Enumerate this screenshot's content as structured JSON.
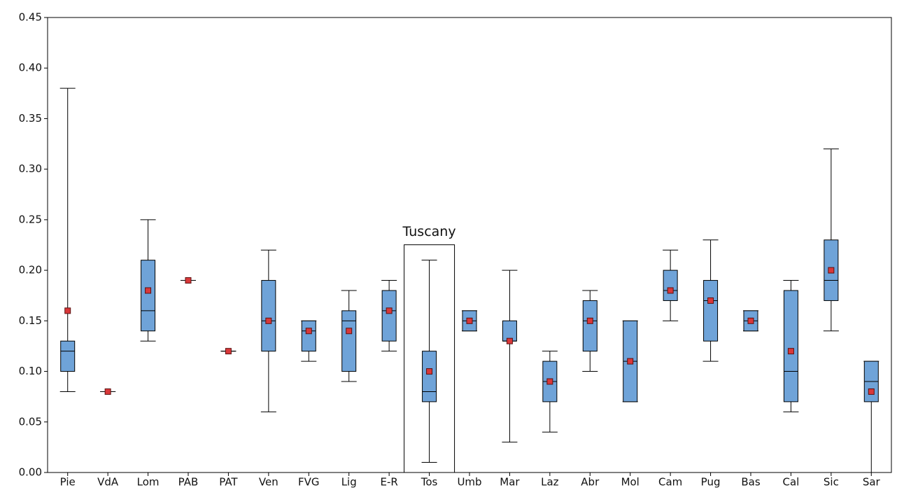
{
  "chart_data": {
    "type": "box",
    "categories": [
      "Pie",
      "VdA",
      "Lom",
      "PAB",
      "PAT",
      "Ven",
      "FVG",
      "Lig",
      "E-R",
      "Tos",
      "Umb",
      "Mar",
      "Laz",
      "Abr",
      "Mol",
      "Cam",
      "Pug",
      "Bas",
      "Cal",
      "Sic",
      "Sar"
    ],
    "min": [
      0.08,
      0.08,
      0.13,
      0.19,
      0.12,
      0.06,
      0.11,
      0.09,
      0.12,
      0.01,
      0.14,
      0.03,
      0.04,
      0.1,
      0.07,
      0.15,
      0.11,
      0.14,
      0.06,
      0.14,
      0.0
    ],
    "q1": [
      0.1,
      0.08,
      0.14,
      0.19,
      0.12,
      0.12,
      0.12,
      0.1,
      0.13,
      0.07,
      0.14,
      0.13,
      0.07,
      0.12,
      0.07,
      0.17,
      0.13,
      0.14,
      0.07,
      0.17,
      0.07
    ],
    "median": [
      0.12,
      0.08,
      0.16,
      0.19,
      0.12,
      0.15,
      0.14,
      0.15,
      0.16,
      0.08,
      0.15,
      0.13,
      0.09,
      0.15,
      0.11,
      0.18,
      0.17,
      0.15,
      0.1,
      0.19,
      0.09
    ],
    "q3": [
      0.13,
      0.08,
      0.21,
      0.19,
      0.12,
      0.19,
      0.15,
      0.16,
      0.18,
      0.12,
      0.16,
      0.15,
      0.11,
      0.17,
      0.15,
      0.2,
      0.19,
      0.16,
      0.18,
      0.23,
      0.11
    ],
    "max": [
      0.38,
      0.08,
      0.25,
      0.19,
      0.12,
      0.22,
      0.15,
      0.18,
      0.19,
      0.21,
      0.16,
      0.2,
      0.12,
      0.18,
      0.15,
      0.22,
      0.23,
      0.16,
      0.19,
      0.32,
      0.11
    ],
    "mean": [
      0.16,
      0.08,
      0.18,
      0.19,
      0.12,
      0.15,
      0.14,
      0.14,
      0.16,
      0.1,
      0.15,
      0.13,
      0.09,
      0.15,
      0.11,
      0.18,
      0.17,
      0.15,
      0.12,
      0.2,
      0.08
    ],
    "box_color": "#6fa3d8",
    "mean_color": "#d9383a",
    "ylim": [
      0,
      0.45
    ],
    "yticks": [
      {
        "value": 0,
        "label": "0.00"
      },
      {
        "value": 0.05,
        "label": "0.05"
      },
      {
        "value": 0.1,
        "label": "0.10"
      },
      {
        "value": 0.15,
        "label": "0.15"
      },
      {
        "value": 0.2,
        "label": "0.20"
      },
      {
        "value": 0.25,
        "label": "0.25"
      },
      {
        "value": 0.3,
        "label": "0.30"
      },
      {
        "value": 0.35,
        "label": "0.35"
      },
      {
        "value": 0.4,
        "label": "0.40"
      },
      {
        "value": 0.45,
        "label": "0.45"
      }
    ],
    "annotation": {
      "text": "Tuscany",
      "category": "Tos"
    }
  }
}
